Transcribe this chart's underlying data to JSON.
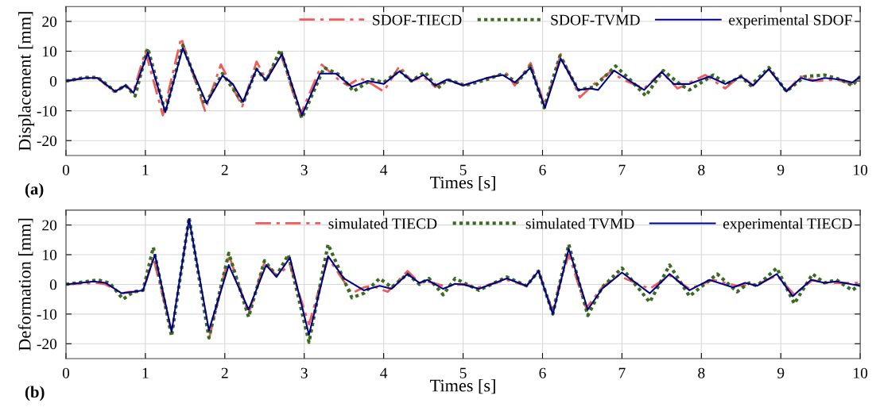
{
  "chart_data": [
    {
      "type": "line",
      "xlabel": "Times [s]",
      "ylabel": "Displacement [mm]",
      "annotations": [
        "(a)"
      ],
      "xlim": [
        0,
        10
      ],
      "ylim": [
        -25,
        25
      ],
      "xticks": [
        0,
        1,
        2,
        3,
        4,
        5,
        6,
        7,
        8,
        9,
        10
      ],
      "yticks": [
        -20,
        -10,
        0,
        10,
        20
      ],
      "grid": true,
      "legend": "top right",
      "series": [
        {
          "name": "SDOF-TIECD",
          "color": "#f05a5a",
          "line_style": "dashdot",
          "x": [
            0,
            0.25,
            0.4,
            0.62,
            0.75,
            0.85,
            1.0,
            1.22,
            1.45,
            1.75,
            1.95,
            2.22,
            2.4,
            2.52,
            2.7,
            2.95,
            3.22,
            3.45,
            3.55,
            3.7,
            3.85,
            4.0,
            4.2,
            4.35,
            4.5,
            4.65,
            4.8,
            5.0,
            5.3,
            5.55,
            5.65,
            5.85,
            6.03,
            6.23,
            6.47,
            6.65,
            6.85,
            7.05,
            7.28,
            7.5,
            7.7,
            8.05,
            8.3,
            8.5,
            8.65,
            8.85,
            9.07,
            9.25,
            9.45,
            9.7,
            9.9,
            10
          ],
          "values": [
            0,
            1,
            1,
            -4,
            -1.5,
            -3.5,
            10,
            -11.5,
            14.5,
            -10,
            5.5,
            -8.5,
            6.5,
            0.5,
            9.5,
            -11.5,
            5.5,
            0,
            -1.5,
            1,
            -1,
            -3.5,
            5,
            0,
            1.5,
            -2,
            0.5,
            -1.5,
            1,
            2.5,
            -1.5,
            6,
            -8.5,
            9,
            -5.5,
            -1,
            3,
            0,
            -2.5,
            3,
            -2.5,
            2,
            -2.5,
            2,
            -1.5,
            4,
            -3.5,
            1.5,
            0,
            0.5,
            -1,
            1.5
          ]
        },
        {
          "name": "SDOF-TVMD",
          "color": "#3a6b20",
          "line_style": "dotted",
          "x": [
            0,
            0.25,
            0.4,
            0.62,
            0.75,
            0.87,
            1.03,
            1.25,
            1.47,
            1.75,
            1.97,
            2.23,
            2.4,
            2.52,
            2.7,
            2.97,
            3.25,
            3.45,
            3.62,
            3.85,
            4.0,
            4.2,
            4.35,
            4.52,
            4.68,
            4.8,
            5.03,
            5.3,
            5.5,
            5.68,
            5.85,
            6.02,
            6.22,
            6.45,
            6.65,
            6.92,
            7.1,
            7.3,
            7.52,
            7.75,
            7.85,
            8.15,
            8.32,
            8.5,
            8.62,
            8.85,
            9.07,
            9.3,
            9.55,
            9.75,
            9.9,
            10
          ],
          "values": [
            0,
            1.2,
            1.2,
            -3.5,
            -1.5,
            -5,
            11,
            -10.5,
            12,
            -8,
            2.5,
            -7.5,
            4,
            0,
            10.5,
            -12.5,
            4.5,
            2,
            -3.5,
            0.5,
            -0.5,
            3.5,
            0,
            3,
            -2.5,
            0.5,
            -1.5,
            0.5,
            2.5,
            -0.5,
            5,
            -9,
            8.5,
            -3,
            -2,
            5,
            0.5,
            -5,
            3.5,
            -1.5,
            -3,
            2,
            -1,
            1.5,
            -1.5,
            4.5,
            -3.5,
            1.5,
            2,
            0.5,
            -1.5,
            1.5
          ]
        },
        {
          "name": "experimental SDOF",
          "color": "#00008b",
          "line_style": "solid",
          "x": [
            0,
            0.25,
            0.4,
            0.62,
            0.75,
            0.85,
            1.03,
            1.25,
            1.47,
            1.77,
            1.97,
            2.1,
            2.23,
            2.4,
            2.52,
            2.72,
            2.97,
            3.2,
            3.4,
            3.6,
            3.8,
            4.0,
            4.2,
            4.35,
            4.5,
            4.65,
            4.8,
            5.0,
            5.3,
            5.5,
            5.65,
            5.85,
            6.03,
            6.23,
            6.45,
            6.6,
            6.7,
            6.9,
            7.1,
            7.28,
            7.5,
            7.65,
            7.85,
            8.1,
            8.3,
            8.5,
            8.65,
            8.85,
            9.07,
            9.25,
            9.4,
            9.55,
            9.75,
            9.9,
            10
          ],
          "values": [
            0,
            1,
            1,
            -3.5,
            -1.5,
            -4,
            9.5,
            -10.5,
            11,
            -7.5,
            1.8,
            -1,
            -7,
            4,
            0.2,
            9,
            -11.5,
            2.5,
            2.5,
            -2,
            0,
            -1,
            3.3,
            0,
            2,
            -1.5,
            0.5,
            -1.5,
            1,
            2,
            -0.5,
            4.5,
            -9,
            7.5,
            -3,
            -2.5,
            -3,
            3.5,
            0,
            -3,
            3,
            -1,
            -1,
            1.5,
            -1,
            1.5,
            -1.5,
            4,
            -3.5,
            1,
            0,
            1,
            0.5,
            -0.5,
            1.5
          ]
        }
      ]
    },
    {
      "type": "line",
      "xlabel": "Times [s]",
      "ylabel": "Deformation [mm]",
      "annotations": [
        "(b)"
      ],
      "xlim": [
        0,
        10
      ],
      "ylim": [
        -25,
        25
      ],
      "xticks": [
        0,
        1,
        2,
        3,
        4,
        5,
        6,
        7,
        8,
        9,
        10
      ],
      "yticks": [
        -20,
        -10,
        0,
        10,
        20
      ],
      "grid": true,
      "legend": "top right",
      "series": [
        {
          "name": "simulated TIECD",
          "color": "#f05a5a",
          "line_style": "dashdot",
          "x": [
            0,
            0.4,
            0.5,
            0.7,
            0.8,
            0.97,
            1.1,
            1.32,
            1.55,
            1.8,
            2.05,
            2.3,
            2.5,
            2.65,
            2.82,
            3.06,
            3.3,
            3.6,
            3.75,
            3.85,
            4.05,
            4.3,
            4.45,
            4.55,
            4.75,
            5.0,
            5.2,
            5.55,
            5.8,
            5.95,
            6.12,
            6.33,
            6.55,
            6.75,
            6.95,
            7.35,
            7.6,
            7.85,
            8.15,
            8.45,
            8.7,
            8.95,
            9.17,
            9.4,
            9.55,
            9.7,
            10
          ],
          "values": [
            0,
            0.5,
            0,
            -3,
            -2.5,
            -2.5,
            9,
            -15,
            null,
            -18.5,
            10,
            -10,
            7.5,
            3,
            6.5,
            -13.5,
            9,
            -3,
            -1,
            -0.5,
            -2.5,
            4.5,
            0.5,
            1,
            -0.5,
            0,
            -1,
            1.5,
            -0.5,
            4.5,
            -8.5,
            10,
            -8,
            -1,
            3,
            -1.5,
            3,
            -1.5,
            1.5,
            -0.5,
            0,
            3,
            -3.5,
            1.5,
            0.5,
            0.5,
            0.5
          ]
        },
        {
          "name": "simulated TVMD",
          "color": "#3a6b20",
          "line_style": "dotted",
          "x": [
            0,
            0.4,
            0.55,
            0.72,
            0.85,
            0.97,
            1.1,
            1.33,
            1.55,
            1.8,
            2.05,
            2.3,
            2.5,
            2.65,
            2.8,
            3.06,
            3.3,
            3.6,
            3.75,
            3.95,
            4.1,
            4.3,
            4.45,
            4.57,
            4.75,
            4.9,
            5.2,
            5.55,
            5.8,
            5.95,
            6.13,
            6.33,
            6.57,
            6.75,
            7.0,
            7.35,
            7.6,
            7.85,
            8.2,
            8.45,
            8.6,
            8.7,
            8.95,
            9.17,
            9.4,
            9.55,
            9.7,
            9.9,
            10
          ],
          "values": [
            0,
            1.5,
            0.5,
            -5,
            -2.5,
            -2,
            12.5,
            -17.5,
            22.5,
            -18,
            10.5,
            -11,
            8,
            3,
            10,
            -19.5,
            13.5,
            -4.5,
            -3,
            2,
            -1,
            3.5,
            0,
            2,
            -3.5,
            2,
            -2,
            2.5,
            -0.5,
            4.5,
            -10,
            13.5,
            -10.5,
            -1,
            5.5,
            -6,
            6.5,
            -4,
            3.5,
            -2.5,
            0.5,
            -0.5,
            5.5,
            -6.5,
            3.5,
            0.5,
            1.5,
            -2,
            0
          ]
        },
        {
          "name": "experimental TIECD",
          "color": "#00008b",
          "line_style": "solid",
          "x": [
            0,
            0.35,
            0.5,
            0.7,
            0.85,
            0.97,
            1.12,
            1.33,
            1.55,
            1.8,
            2.05,
            2.3,
            2.52,
            2.65,
            2.82,
            3.06,
            3.3,
            3.5,
            3.75,
            3.95,
            4.1,
            4.3,
            4.45,
            4.55,
            4.75,
            4.9,
            5.0,
            5.2,
            5.55,
            5.8,
            5.95,
            6.13,
            6.33,
            6.57,
            6.75,
            7.0,
            7.35,
            7.6,
            7.85,
            8.1,
            8.4,
            8.55,
            8.7,
            8.95,
            9.15,
            9.38,
            9.55,
            9.7,
            10
          ],
          "values": [
            0,
            1,
            0.5,
            -3,
            -2.5,
            -2,
            10,
            -16,
            22,
            -15.5,
            6.5,
            -8.5,
            6.5,
            2.5,
            9,
            -17,
            9.5,
            2,
            -2,
            -0.5,
            -1.5,
            3.5,
            0.5,
            1.5,
            -1.5,
            0.2,
            0,
            -1.5,
            2,
            -0.5,
            4.5,
            -10,
            12,
            -8.5,
            -1.5,
            4,
            -3,
            3.5,
            -2,
            1.5,
            -1,
            0.5,
            -0.5,
            3.5,
            -4,
            1.5,
            0.5,
            1,
            -0.5
          ]
        }
      ]
    }
  ]
}
